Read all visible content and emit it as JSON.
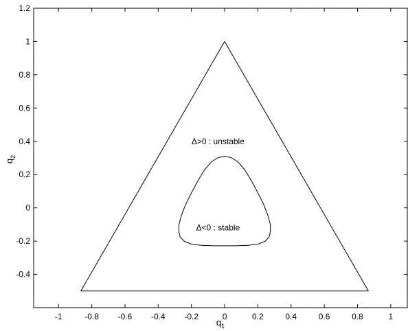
{
  "chart_data": {
    "type": "line",
    "title": "",
    "xlabel": {
      "base": "q",
      "sub": "1"
    },
    "ylabel": {
      "base": "q",
      "sub": "2"
    },
    "xlim": [
      -1.15,
      1.1
    ],
    "ylim": [
      -0.6,
      1.2
    ],
    "xticks": [
      -1,
      -0.8,
      -0.6,
      -0.4,
      -0.2,
      0,
      0.2,
      0.4,
      0.6,
      0.8,
      1
    ],
    "xtick_labels": [
      "-1",
      "-0.8",
      "-0.6",
      "-0.4",
      "-0.2",
      "0",
      "0.2",
      "0.4",
      "0.6",
      "0.8",
      "1"
    ],
    "yticks": [
      -0.4,
      -0.2,
      0,
      0.2,
      0.4,
      0.6,
      0.8,
      1,
      1.2
    ],
    "ytick_labels": [
      "-0.4",
      "-0.2",
      "0",
      "0.2",
      "0.4",
      "0.6",
      "0.8",
      "1",
      "1.2"
    ],
    "grid": false,
    "line_color": "#000000",
    "series": [
      {
        "shape": "triangle",
        "closed": true,
        "points": [
          [
            0,
            1
          ],
          [
            0.866,
            -0.5
          ],
          [
            -0.866,
            -0.5
          ]
        ]
      },
      {
        "shape": "stability-boundary",
        "closed": true,
        "points": [
          [
            0.0,
            0.31
          ],
          [
            0.04,
            0.302
          ],
          [
            0.08,
            0.276
          ],
          [
            0.12,
            0.23
          ],
          [
            0.16,
            0.165
          ],
          [
            0.2,
            0.09
          ],
          [
            0.235,
            0.02
          ],
          [
            0.262,
            -0.05
          ],
          [
            0.275,
            -0.1
          ],
          [
            0.276,
            -0.14
          ],
          [
            0.268,
            -0.175
          ],
          [
            0.245,
            -0.2
          ],
          [
            0.2,
            -0.218
          ],
          [
            0.14,
            -0.225
          ],
          [
            0.07,
            -0.228
          ],
          [
            0.0,
            -0.228
          ],
          [
            -0.07,
            -0.228
          ],
          [
            -0.14,
            -0.225
          ],
          [
            -0.2,
            -0.218
          ],
          [
            -0.245,
            -0.2
          ],
          [
            -0.268,
            -0.175
          ],
          [
            -0.276,
            -0.14
          ],
          [
            -0.275,
            -0.1
          ],
          [
            -0.262,
            -0.05
          ],
          [
            -0.235,
            0.02
          ],
          [
            -0.2,
            0.09
          ],
          [
            -0.16,
            0.165
          ],
          [
            -0.12,
            0.23
          ],
          [
            -0.08,
            0.276
          ],
          [
            -0.04,
            0.302
          ]
        ]
      }
    ],
    "annotations": [
      {
        "text": "Δ>0 : unstable",
        "x": -0.04,
        "y": 0.4
      },
      {
        "text": "Δ<0 : stable",
        "x": -0.04,
        "y": -0.12
      }
    ]
  }
}
